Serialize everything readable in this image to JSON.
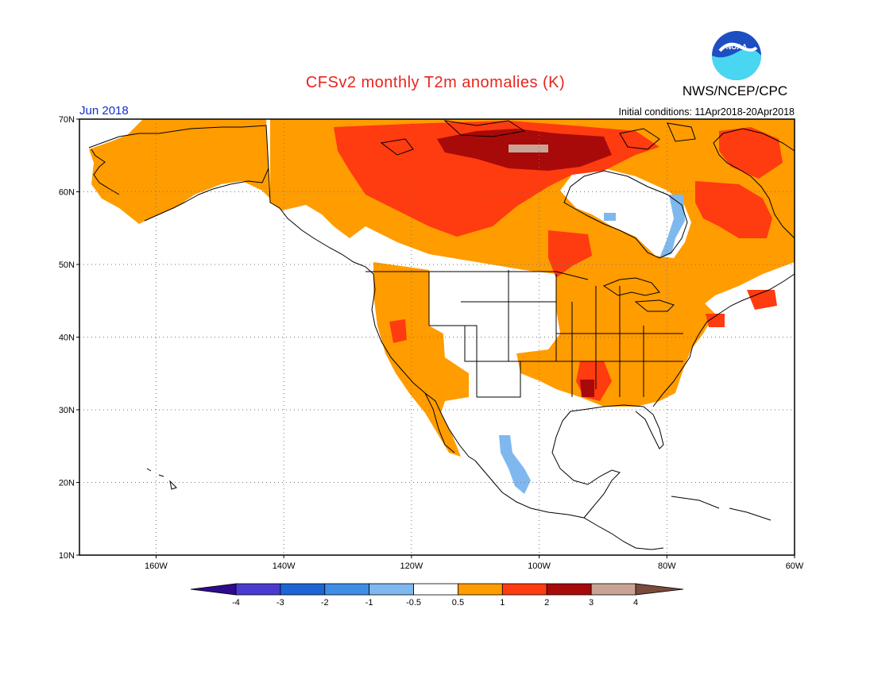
{
  "header": {
    "title": "CFSv2 monthly T2m anomalies (K)",
    "agency": "NWS/NCEP/CPC",
    "logo_text": "NOAA",
    "period": "Jun 2018",
    "initial_conditions": "Initial conditions: 11Apr2018-20Apr2018"
  },
  "map": {
    "lon_range": [
      -172,
      -60
    ],
    "lat_range": [
      10,
      70
    ],
    "lon_ticks": [
      {
        "value": -160,
        "label": "160W"
      },
      {
        "value": -140,
        "label": "140W"
      },
      {
        "value": -120,
        "label": "120W"
      },
      {
        "value": -100,
        "label": "100W"
      },
      {
        "value": -80,
        "label": "80W"
      },
      {
        "value": -60,
        "label": "60W"
      }
    ],
    "lat_ticks": [
      {
        "value": 70,
        "label": "70N"
      },
      {
        "value": 60,
        "label": "60N"
      },
      {
        "value": 50,
        "label": "50N"
      },
      {
        "value": 40,
        "label": "40N"
      },
      {
        "value": 30,
        "label": "30N"
      },
      {
        "value": 20,
        "label": "20N"
      },
      {
        "value": 10,
        "label": "10N"
      }
    ],
    "gridlines": "dotted"
  },
  "colorbar": {
    "labels": [
      "-4",
      "-3",
      "-2",
      "-1",
      "-0.5",
      "0.5",
      "1",
      "2",
      "3",
      "4"
    ],
    "colors": [
      "#2e0a8c",
      "#4a3bd0",
      "#1b66d4",
      "#3f8ee6",
      "#7fb8ef",
      "#ffffff",
      "#ff9c00",
      "#ff3b10",
      "#a80a0a",
      "#c9a496",
      "#7a4a3a"
    ]
  }
}
